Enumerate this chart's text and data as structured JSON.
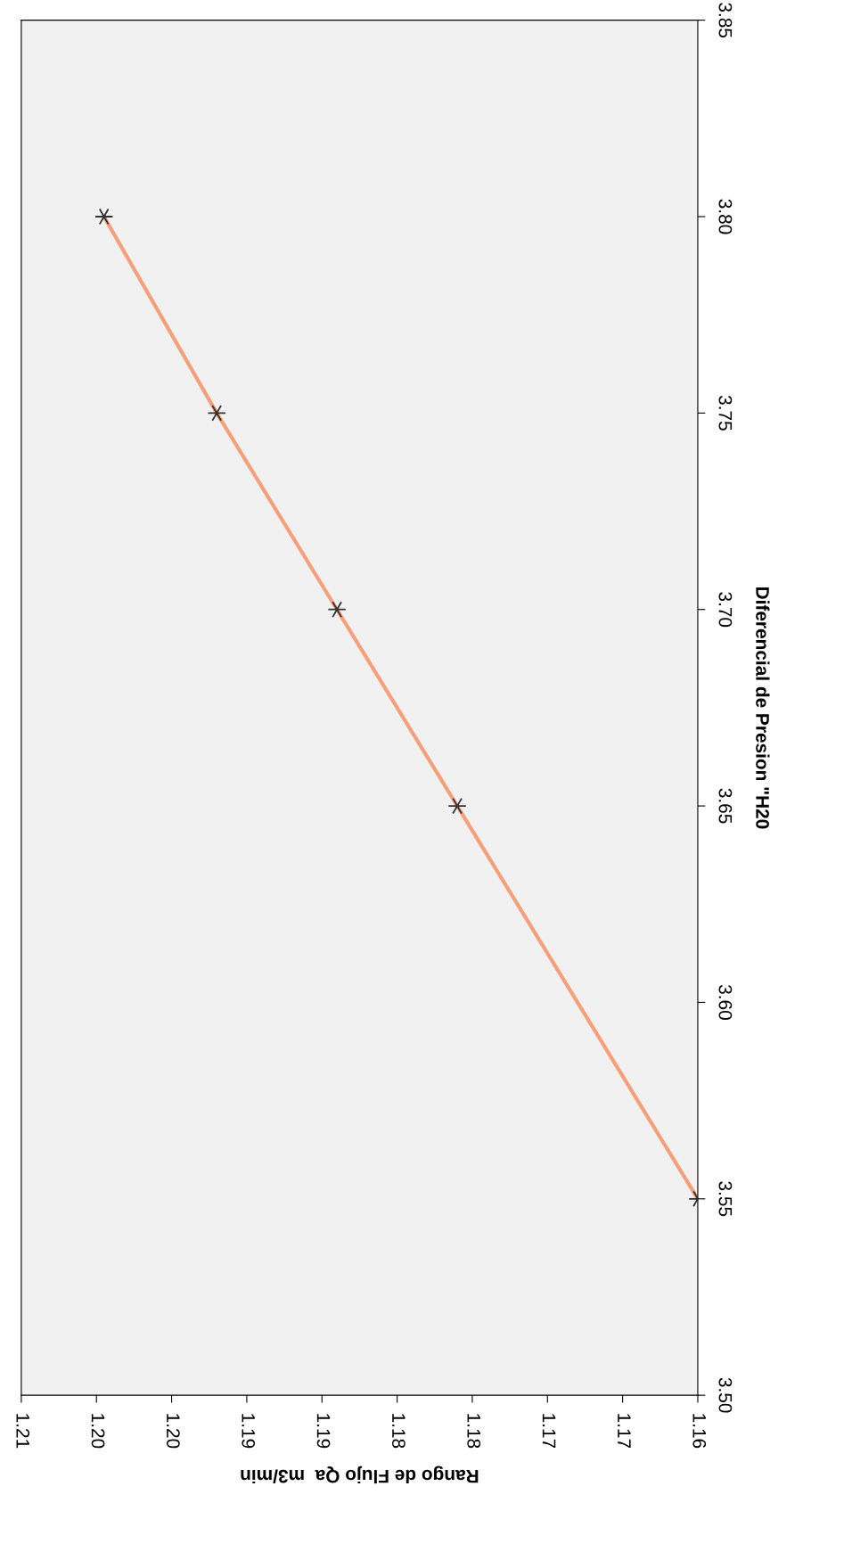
{
  "chart_data": {
    "type": "line",
    "xlabel": "Rango de Flujo Qa  m3/min",
    "ylabel": "Diferencial de Presion \"H20",
    "x": [
      1.16,
      1.176,
      1.184,
      1.192,
      1.1995
    ],
    "series": [
      {
        "color": "#f5a07a",
        "values": [
          3.55,
          3.65,
          3.7,
          3.75,
          3.8
        ]
      }
    ],
    "marker": "cross",
    "line_style": "solid",
    "xlim": [
      1.205,
      1.16
    ],
    "xticks": [
      {
        "value": 1.205,
        "label": "1.21"
      },
      {
        "value": 1.2,
        "label": "1.20"
      },
      {
        "value": 1.195,
        "label": "1.20"
      },
      {
        "value": 1.19,
        "label": "1.19"
      },
      {
        "value": 1.185,
        "label": "1.19"
      },
      {
        "value": 1.18,
        "label": "1.18"
      },
      {
        "value": 1.175,
        "label": "1.18"
      },
      {
        "value": 1.17,
        "label": "1.17"
      },
      {
        "value": 1.165,
        "label": "1.17"
      },
      {
        "value": 1.16,
        "label": "1.16"
      }
    ],
    "ylim": [
      3.5,
      3.85
    ],
    "yticks": [
      {
        "value": 3.5,
        "label": "3.50"
      },
      {
        "value": 3.55,
        "label": "3.55"
      },
      {
        "value": 3.6,
        "label": "3.60"
      },
      {
        "value": 3.65,
        "label": "3.65"
      },
      {
        "value": 3.7,
        "label": "3.70"
      },
      {
        "value": 3.75,
        "label": "3.75"
      },
      {
        "value": 3.8,
        "label": "3.80"
      },
      {
        "value": 3.85,
        "label": "3.85"
      }
    ]
  }
}
